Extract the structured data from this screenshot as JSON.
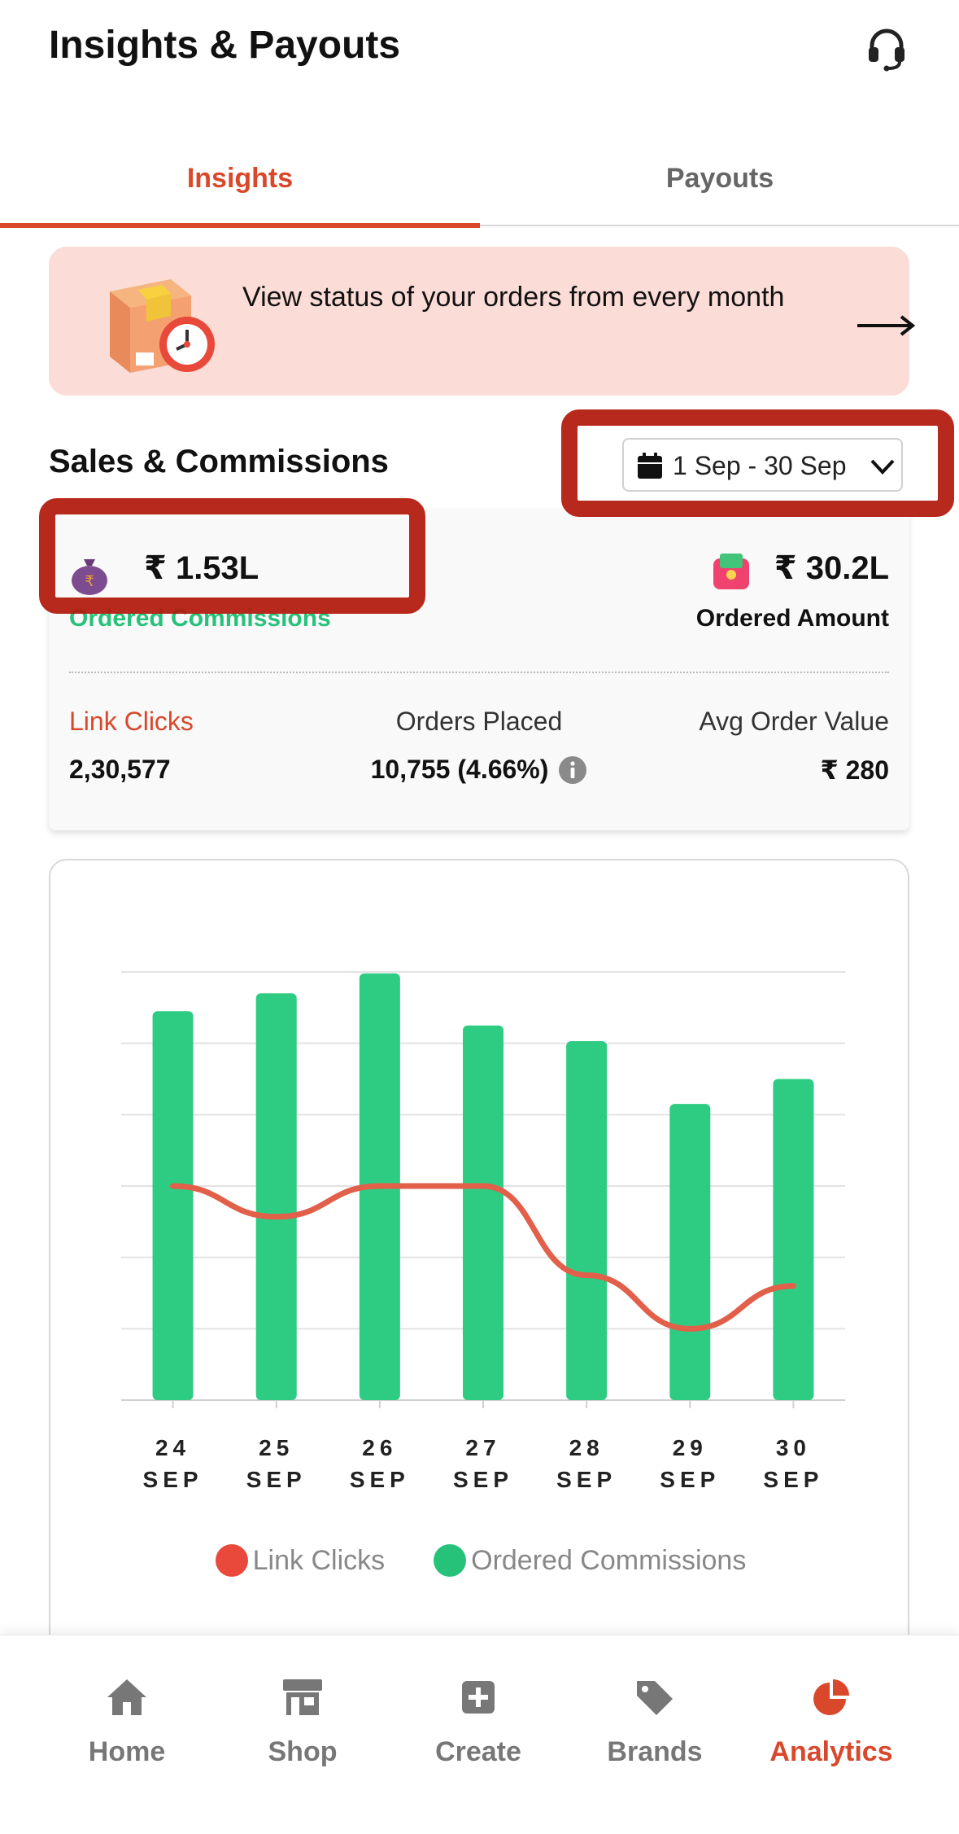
{
  "header": {
    "title": "Insights & Payouts",
    "support_icon": "headset-icon"
  },
  "tabs": [
    {
      "label": "Insights",
      "active": true
    },
    {
      "label": "Payouts",
      "active": false
    }
  ],
  "banner": {
    "text": "View status of your orders from every month",
    "icon": "package-clock-icon",
    "arrow_icon": "arrow-right-icon"
  },
  "sales": {
    "title": "Sales & Commissions",
    "date_range": "1 Sep - 30 Sep",
    "ordered_commissions": {
      "value": "₹ 1.53L",
      "label": "Ordered Commissions"
    },
    "ordered_amount": {
      "value": "₹ 30.2L",
      "label": "Ordered Amount"
    },
    "link_clicks": {
      "label": "Link Clicks",
      "value": "2,30,577"
    },
    "orders_placed": {
      "label": "Orders Placed",
      "value": "10,755 (4.66%)"
    },
    "avg_order_value": {
      "label": "Avg Order Value",
      "value": "₹ 280"
    }
  },
  "chart_data": {
    "type": "bar",
    "categories": [
      {
        "day": "24",
        "month": "SEP"
      },
      {
        "day": "25",
        "month": "SEP"
      },
      {
        "day": "26",
        "month": "SEP"
      },
      {
        "day": "27",
        "month": "SEP"
      },
      {
        "day": "28",
        "month": "SEP"
      },
      {
        "day": "29",
        "month": "SEP"
      },
      {
        "day": "30",
        "month": "SEP"
      }
    ],
    "ylim": [
      0,
      6
    ],
    "gridlines": 7,
    "series": [
      {
        "name": "Ordered Commissions",
        "type": "bar",
        "color": "#2ecc83",
        "values": [
          5.45,
          5.7,
          5.98,
          5.25,
          5.03,
          4.15,
          4.5
        ]
      },
      {
        "name": "Link Clicks",
        "type": "line",
        "color": "#e25f4a",
        "values": [
          3.0,
          2.57,
          3.0,
          3.0,
          1.75,
          1.0,
          1.6
        ]
      }
    ],
    "legend_position": "bottom"
  },
  "legend": [
    {
      "label": "Link Clicks",
      "color": "#e8493a"
    },
    {
      "label": "Ordered Commissions",
      "color": "#27c27a"
    }
  ],
  "nav": [
    {
      "label": "Home",
      "icon": "home-icon",
      "active": false
    },
    {
      "label": "Shop",
      "icon": "shop-icon",
      "active": false
    },
    {
      "label": "Create",
      "icon": "create-plus-icon",
      "active": false
    },
    {
      "label": "Brands",
      "icon": "tags-icon",
      "active": false
    },
    {
      "label": "Analytics",
      "icon": "pie-chart-icon",
      "active": true
    }
  ],
  "colors": {
    "accent": "#d9482b",
    "green": "#27c27a",
    "banner_bg": "#fbdcd6",
    "highlight": "#b2190b"
  }
}
